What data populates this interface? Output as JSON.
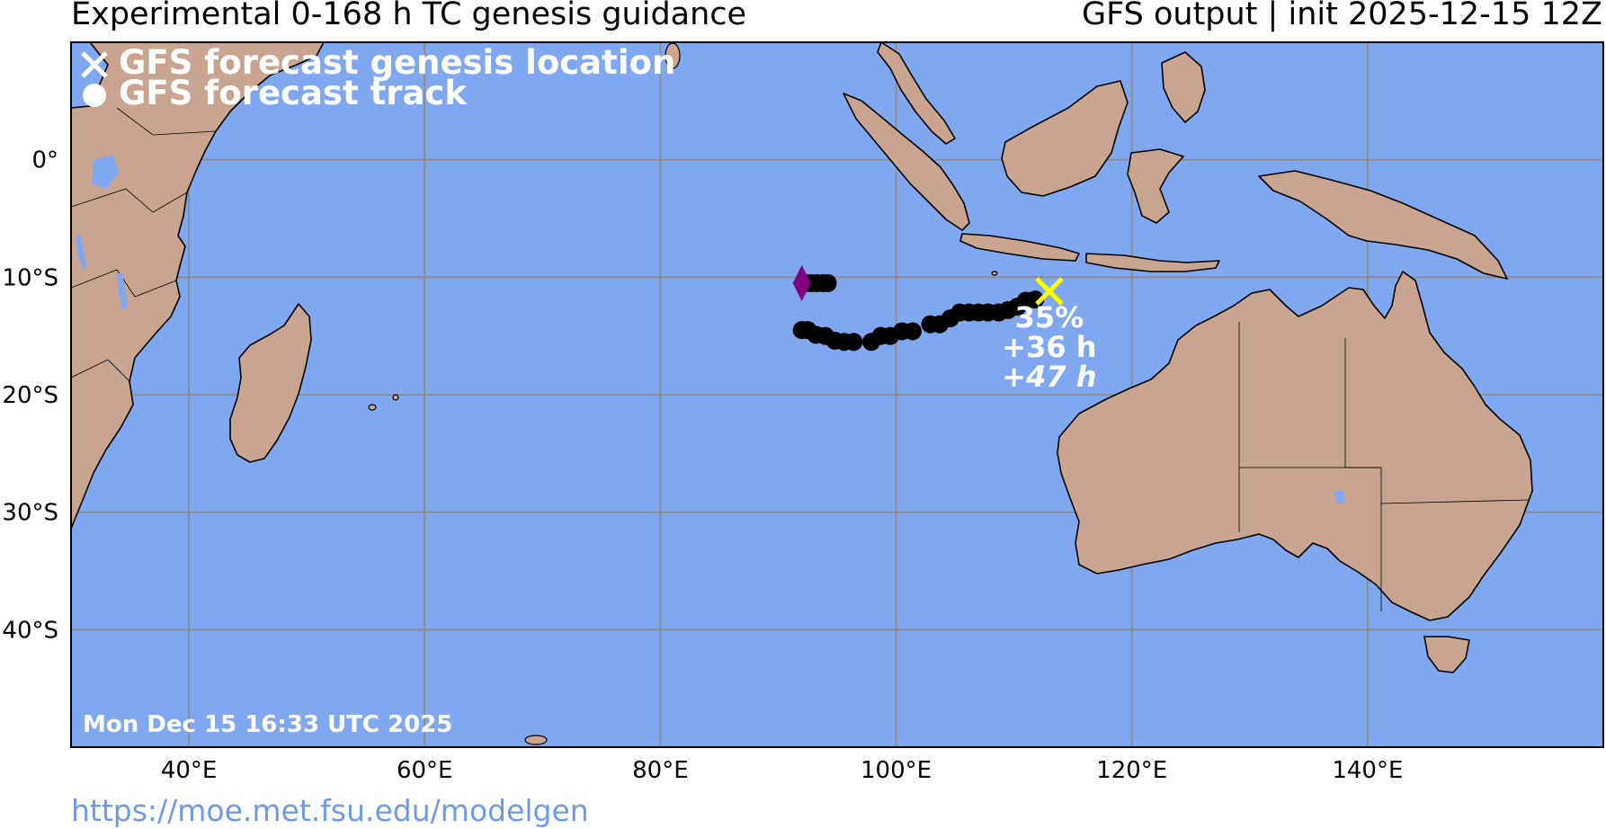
{
  "header": {
    "title_left": "Experimental 0-168 h TC genesis guidance",
    "title_right": "GFS output | init 2025-12-15 12Z"
  },
  "legend": {
    "genesis_label": "GFS forecast genesis location",
    "track_label": "GFS forecast track"
  },
  "map": {
    "lon_min": 30,
    "lon_max": 160,
    "lat_min": -50,
    "lat_max": 10,
    "lon_ticks": [
      40,
      60,
      80,
      100,
      120,
      140
    ],
    "lon_tick_labels": [
      "40°E",
      "60°E",
      "80°E",
      "100°E",
      "120°E",
      "140°E"
    ],
    "lat_ticks": [
      0,
      -10,
      -20,
      -30,
      -40
    ],
    "lat_tick_labels": [
      "0°",
      "10°S",
      "20°S",
      "30°S",
      "40°S"
    ],
    "grid": true,
    "colors": {
      "ocean": "#80a8f0",
      "land": "#c9a591",
      "grid": "#8c8c8c",
      "track": "#000000",
      "genesis_marker": "#ffff00",
      "start_marker": "#800080"
    }
  },
  "chart_data": {
    "type": "scatter",
    "genesis": {
      "lon": 113,
      "lat": -11.2,
      "probability_label": "35%",
      "time_label_1": "+36 h",
      "time_label_2": "+47 h"
    },
    "start_marker": {
      "lon": 92,
      "lat": -10.5
    },
    "track": [
      {
        "lon": 92.3,
        "lat": -10.5
      },
      {
        "lon": 92.8,
        "lat": -10.5
      },
      {
        "lon": 93.3,
        "lat": -10.5
      },
      {
        "lon": 93.8,
        "lat": -10.5
      },
      {
        "lon": 94.2,
        "lat": -10.5
      },
      {
        "lon": 92.0,
        "lat": -14.5
      },
      {
        "lon": 92.5,
        "lat": -14.5
      },
      {
        "lon": 93.2,
        "lat": -14.9
      },
      {
        "lon": 94.0,
        "lat": -15.0
      },
      {
        "lon": 94.8,
        "lat": -15.4
      },
      {
        "lon": 95.6,
        "lat": -15.5
      },
      {
        "lon": 96.4,
        "lat": -15.5
      },
      {
        "lon": 97.9,
        "lat": -15.5
      },
      {
        "lon": 98.7,
        "lat": -15.0
      },
      {
        "lon": 99.5,
        "lat": -15.0
      },
      {
        "lon": 100.5,
        "lat": -14.6
      },
      {
        "lon": 101.4,
        "lat": -14.6
      },
      {
        "lon": 102.9,
        "lat": -14.0
      },
      {
        "lon": 103.7,
        "lat": -14.0
      },
      {
        "lon": 104.6,
        "lat": -13.5
      },
      {
        "lon": 105.4,
        "lat": -13.0
      },
      {
        "lon": 106.2,
        "lat": -13.0
      },
      {
        "lon": 107.0,
        "lat": -13.0
      },
      {
        "lon": 107.8,
        "lat": -13.0
      },
      {
        "lon": 108.7,
        "lat": -13.0
      },
      {
        "lon": 109.5,
        "lat": -12.8
      },
      {
        "lon": 110.3,
        "lat": -12.5
      },
      {
        "lon": 111.0,
        "lat": -12.0
      },
      {
        "lon": 111.8,
        "lat": -11.9
      }
    ]
  },
  "timestamp": "Mon Dec 15 16:33 UTC 2025",
  "footer_url": "https://moe.met.fsu.edu/modelgen"
}
